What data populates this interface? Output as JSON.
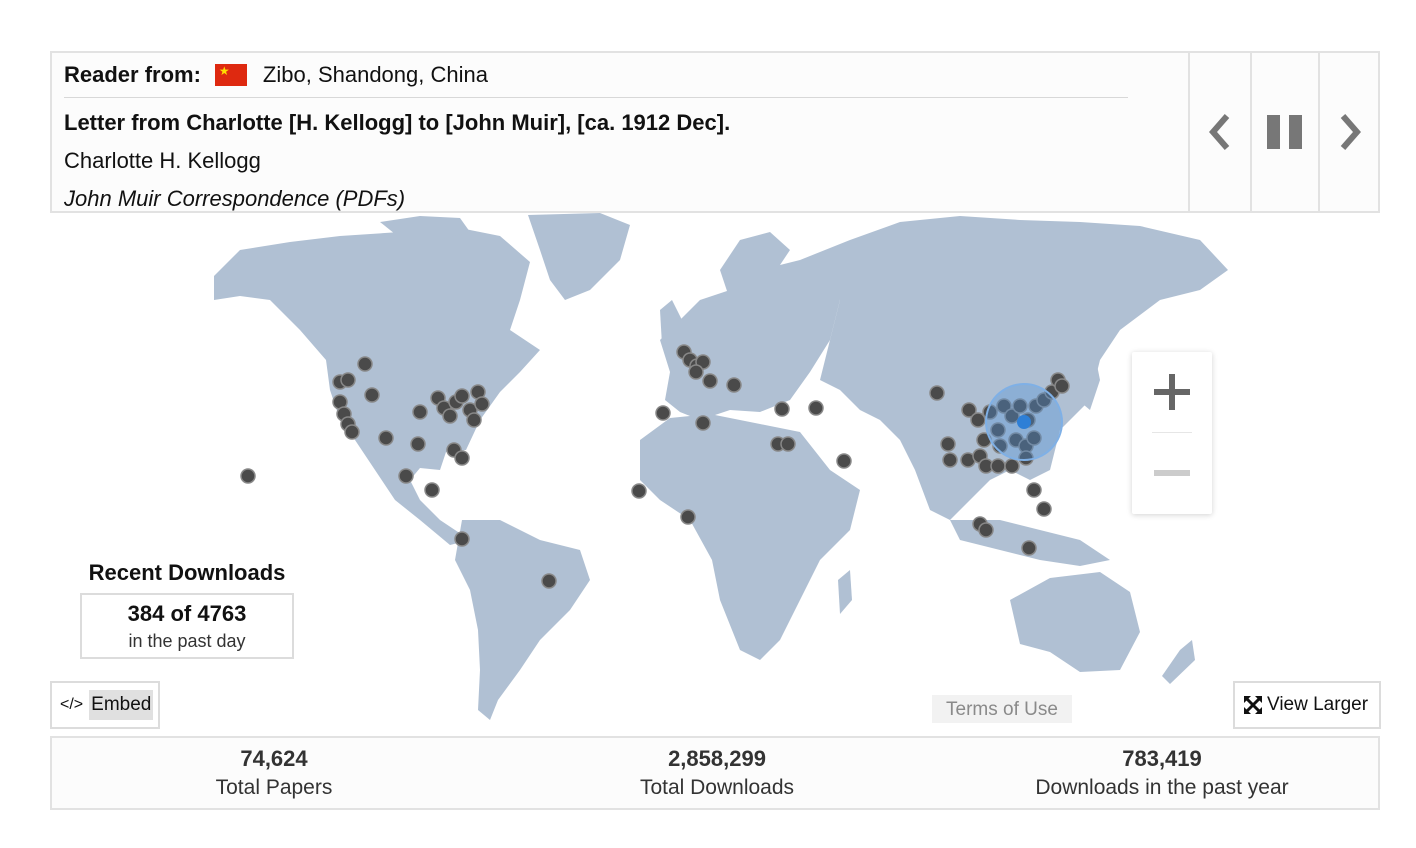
{
  "reader": {
    "label": "Reader from:",
    "location": "Zibo, Shandong, China",
    "flag": "china-flag"
  },
  "paper": {
    "title": "Letter from Charlotte [H. Kellogg] to [John Muir], [ca. 1912 Dec].",
    "author": "Charlotte H. Kellogg",
    "collection": "John Muir Correspondence (PDFs)"
  },
  "controls": {
    "prev_icon": "chevron-left-icon",
    "pause_icon": "pause-icon",
    "next_icon": "chevron-right-icon"
  },
  "map": {
    "land_color": "#b0c0d3",
    "marker_color": "#4a4a4a",
    "highlight_color": "#4a90d9",
    "zoom_in_icon": "plus-icon",
    "zoom_out_icon": "minus-icon"
  },
  "recent": {
    "title": "Recent Downloads",
    "count": "384 of 4763",
    "subtitle": "in the past day"
  },
  "buttons": {
    "embed_code": "</>",
    "embed_label": "Embed",
    "terms": "Terms of Use",
    "view_larger": "View Larger"
  },
  "stats": [
    {
      "value": "74,624",
      "label": "Total Papers"
    },
    {
      "value": "2,858,299",
      "label": "Total Downloads"
    },
    {
      "value": "783,419",
      "label": "Downloads in the past year"
    }
  ]
}
